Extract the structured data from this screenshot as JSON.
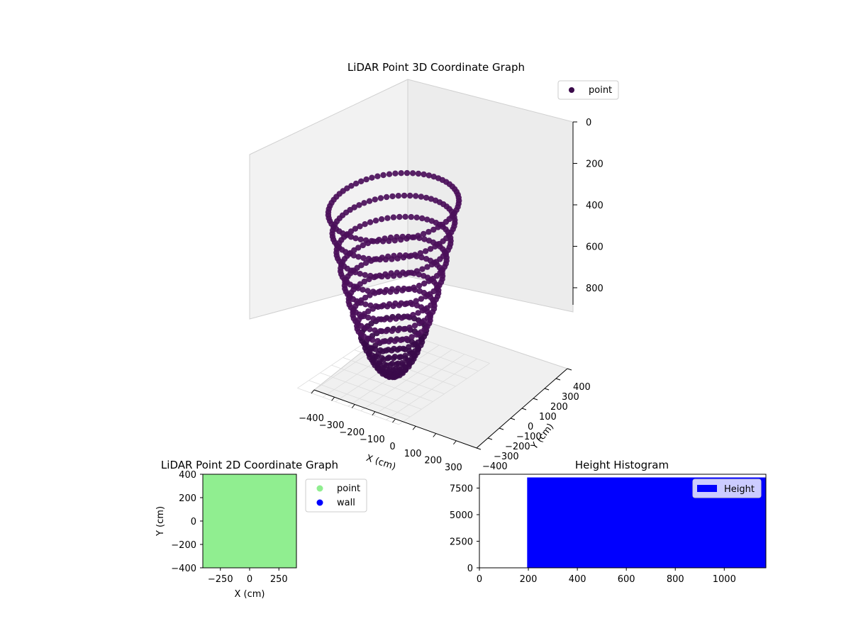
{
  "colors": {
    "point3d": "#4b0f5a",
    "point3d_dark": "#3a0a4a",
    "point2d": "#90ee90",
    "wall": "#0000ff",
    "hist": "#0000ff"
  },
  "chart_data": [
    {
      "type": "scatter",
      "title": "LiDAR Point 3D Coordinate Graph",
      "xlabel": "X (cm)",
      "ylabel": "Y (cm)",
      "zlabel": "",
      "xticks": [
        "−400",
        "−300",
        "−200",
        "−100",
        "0",
        "100",
        "200",
        "300"
      ],
      "yticks": [
        "−400",
        "−300",
        "−200",
        "−100",
        "0",
        "100",
        "200",
        "300",
        "400"
      ],
      "zticks": [
        "0",
        "200",
        "400",
        "600",
        "800"
      ],
      "xlim": [
        -400,
        400
      ],
      "ylim": [
        -400,
        400
      ],
      "zlim": [
        -900,
        0
      ],
      "legend": {
        "position": "top-right",
        "entries": [
          "point"
        ]
      },
      "series": [
        {
          "name": "point"
        }
      ]
    },
    {
      "type": "scatter",
      "title": "LiDAR Point 2D Coordinate Graph",
      "xlabel": "X (cm)",
      "ylabel": "Y (cm)",
      "xticks": [
        "−250",
        "0",
        "250"
      ],
      "yticks": [
        "400",
        "200",
        "0",
        "−200",
        "−400"
      ],
      "xlim": [
        -400,
        400
      ],
      "ylim": [
        -400,
        400
      ],
      "legend": {
        "position": "outside-right",
        "entries": [
          "point",
          "wall"
        ]
      },
      "series": [
        {
          "name": "point"
        },
        {
          "name": "wall"
        }
      ]
    },
    {
      "type": "bar",
      "title": "Height Histogram",
      "xticks": [
        "0",
        "200",
        "400",
        "600",
        "800",
        "1000"
      ],
      "yticks": [
        "0",
        "2500",
        "5000",
        "7500"
      ],
      "xlim": [
        0,
        1170
      ],
      "ylim": [
        0,
        8800
      ],
      "legend": {
        "position": "top-right",
        "entries": [
          "Height"
        ]
      },
      "series": [
        {
          "name": "Height",
          "bins": [
            {
              "x0": 195,
              "x1": 1170,
              "count": 8500
            }
          ]
        }
      ]
    }
  ]
}
